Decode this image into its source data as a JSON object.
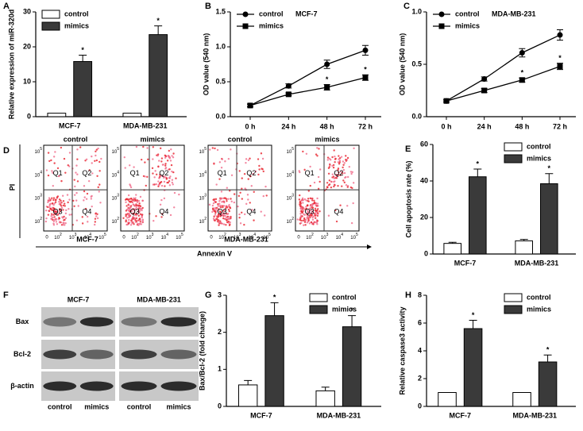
{
  "chart_data": [
    {
      "type": "bar",
      "panel_label": "A",
      "ylabel": "Relative expression of miR-320d",
      "categories": [
        "MCF-7",
        "MDA-MB-231"
      ],
      "series": [
        {
          "name": "control",
          "color": "#ffffff",
          "values": [
            1,
            1
          ]
        },
        {
          "name": "mimics",
          "color": "#3a3a3a",
          "values": [
            15.8,
            23.5
          ],
          "errors": [
            1.8,
            2.5
          ],
          "starred": [
            true,
            true
          ],
          "star": "*"
        }
      ],
      "ylim": [
        0,
        30
      ],
      "yticks": [
        0,
        10,
        20,
        30
      ],
      "legend": "upper left"
    },
    {
      "type": "line",
      "panel_label": "B",
      "title": "MCF-7",
      "ylabel": "OD value (540 nm)",
      "categories": [
        "0 h",
        "24 h",
        "48 h",
        "72 h"
      ],
      "series": [
        {
          "name": "control",
          "color": "#000000",
          "marker": "circle",
          "values": [
            0.16,
            0.44,
            0.75,
            0.95
          ],
          "errors": [
            0.02,
            0.03,
            0.06,
            0.07
          ]
        },
        {
          "name": "mimics",
          "color": "#000000",
          "marker": "square",
          "values": [
            0.16,
            0.32,
            0.42,
            0.56
          ],
          "errors": [
            0.02,
            0.02,
            0.04,
            0.04
          ],
          "starred": [
            false,
            false,
            true,
            true
          ],
          "star": "*"
        }
      ],
      "ylim": [
        0,
        1.5
      ],
      "yticks": [
        {
          "value": 0,
          "label": "0.0"
        },
        {
          "value": 0.5,
          "label": "0.5"
        },
        {
          "value": 1,
          "label": "1.0"
        },
        {
          "value": 1.5,
          "label": "1.5"
        }
      ],
      "legend": "upper left"
    },
    {
      "type": "line",
      "panel_label": "C",
      "title": "MDA-MB-231",
      "ylabel": "OD value (540 nm)",
      "categories": [
        "0 h",
        "24 h",
        "48 h",
        "72 h"
      ],
      "series": [
        {
          "name": "control",
          "color": "#000000",
          "marker": "circle",
          "values": [
            0.15,
            0.36,
            0.61,
            0.78
          ],
          "errors": [
            0.01,
            0.02,
            0.04,
            0.05
          ]
        },
        {
          "name": "mimics",
          "color": "#000000",
          "marker": "square",
          "values": [
            0.15,
            0.25,
            0.35,
            0.48
          ],
          "errors": [
            0.01,
            0.02,
            0.02,
            0.03
          ],
          "starred": [
            false,
            false,
            true,
            true
          ],
          "star": "*"
        }
      ],
      "ylim": [
        0,
        1
      ],
      "yticks": [
        {
          "value": 0,
          "label": "0.0"
        },
        {
          "value": 0.5,
          "label": "0.5"
        },
        {
          "value": 1,
          "label": "1.0"
        }
      ],
      "legend": "upper left"
    },
    {
      "type": "bar",
      "panel_label": "E",
      "ylabel": "Cell apoptosis rate (%)",
      "categories": [
        "MCF-7",
        "MDA-MB-231"
      ],
      "series": [
        {
          "name": "control",
          "color": "#ffffff",
          "values": [
            5.8,
            7.2
          ],
          "errors": [
            0.6,
            0.8
          ]
        },
        {
          "name": "mimics",
          "color": "#3a3a3a",
          "values": [
            42.3,
            38.5
          ],
          "errors": [
            4.2,
            5.5
          ],
          "starred": [
            true,
            true
          ],
          "star": "*"
        }
      ],
      "ylim": [
        0,
        60
      ],
      "yticks": [
        0,
        20,
        40,
        60
      ],
      "legend": "upper right"
    },
    {
      "type": "bar",
      "panel_label": "G",
      "ylabel": "Bax/Bcl-2 (fold change)",
      "categories": [
        "MCF-7",
        "MDA-MB-231"
      ],
      "series": [
        {
          "name": "control",
          "color": "#ffffff",
          "values": [
            0.58,
            0.42
          ],
          "errors": [
            0.12,
            0.1
          ]
        },
        {
          "name": "mimics",
          "color": "#3a3a3a",
          "values": [
            2.45,
            2.15
          ],
          "errors": [
            0.35,
            0.3
          ],
          "starred": [
            true,
            true
          ],
          "star": "*"
        }
      ],
      "ylim": [
        0,
        3
      ],
      "yticks": [
        0,
        1,
        2,
        3
      ],
      "legend": "upper right"
    },
    {
      "type": "bar",
      "panel_label": "H",
      "ylabel": "Relative caspase3 activity",
      "categories": [
        "MCF-7",
        "MDA-MB-231"
      ],
      "series": [
        {
          "name": "control",
          "color": "#ffffff",
          "values": [
            1,
            1
          ]
        },
        {
          "name": "mimics",
          "color": "#3a3a3a",
          "values": [
            5.6,
            3.2
          ],
          "errors": [
            0.6,
            0.5
          ],
          "starred": [
            true,
            true
          ],
          "star": "*"
        }
      ],
      "ylim": [
        0,
        8
      ],
      "yticks": [
        0,
        2,
        4,
        6,
        8
      ],
      "legend": "upper right"
    }
  ],
  "flow_cytometry": {
    "panel_label": "D",
    "plot_titles": [
      "control",
      "mimics",
      "control",
      "mimics"
    ],
    "quadrants": [
      "Q1",
      "Q2",
      "Q3",
      "Q4"
    ],
    "tick_base": "10",
    "tick_exponents": [
      "2",
      "3",
      "4",
      "5"
    ],
    "x_zero": "0",
    "groups": [
      "MCF-7",
      "MDA-MB-231"
    ],
    "x_label": "Annexin V",
    "y_label": "PI"
  },
  "western_blot": {
    "panel_label": "F",
    "cell_lines": [
      "MCF-7",
      "MDA-MB-231"
    ],
    "proteins": [
      "Bax",
      "Bcl-2",
      "β-actin"
    ],
    "lanes": [
      "control",
      "mimics",
      "control",
      "mimics"
    ]
  }
}
